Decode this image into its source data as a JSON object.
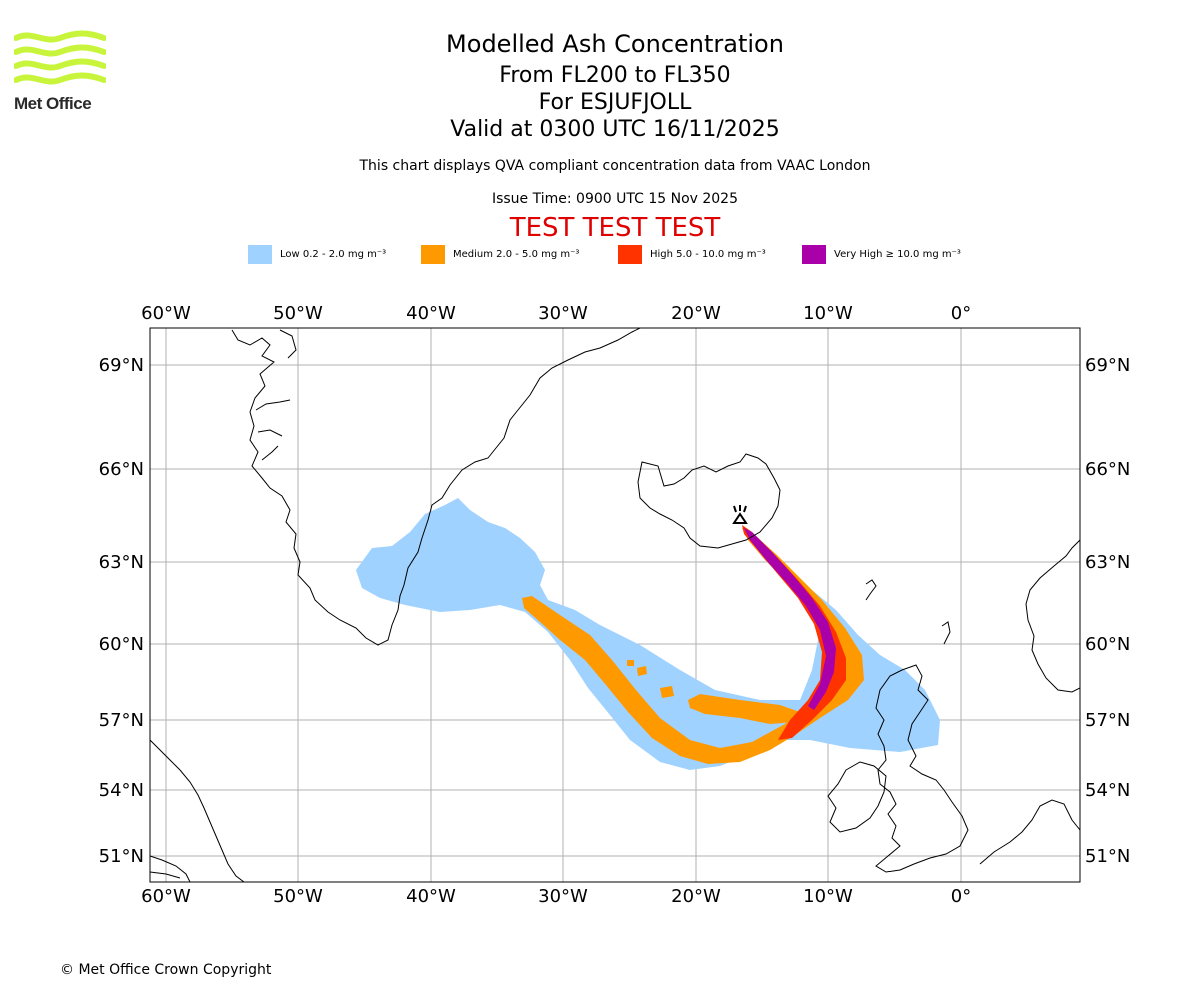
{
  "logo": {
    "text": "Met Office",
    "colors": {
      "waves": "#c8f53c"
    }
  },
  "header": {
    "title": "Modelled Ash Concentration",
    "level_range": "From FL200 to FL350",
    "volcano": "For ESJUFJOLL",
    "valid_time": "Valid at 0300 UTC 16/11/2025",
    "note": "This chart displays QVA compliant concentration data from VAAC London",
    "issue_time": "Issue Time: 0900 UTC 15 Nov 2025",
    "test_banner": "TEST TEST TEST"
  },
  "legend": [
    {
      "label": "Low 0.2 - 2.0 mg m⁻³",
      "color": "#a0d2ff"
    },
    {
      "label": "Medium 2.0 - 5.0 mg m⁻³",
      "color": "#ff9900"
    },
    {
      "label": "High 5.0 - 10.0 mg m⁻³",
      "color": "#ff3300"
    },
    {
      "label": "Very High ≥ 10.0 mg m⁻³",
      "color": "#aa00aa"
    }
  ],
  "map": {
    "lon_labels": [
      "60°W",
      "50°W",
      "40°W",
      "30°W",
      "20°W",
      "10°W",
      "0°"
    ],
    "lat_labels": [
      "69°N",
      "66°N",
      "63°N",
      "60°N",
      "57°N",
      "54°N",
      "51°N"
    ],
    "volcano_marker": "volcano"
  },
  "footer": {
    "copyright": "© Met Office Crown Copyright"
  }
}
